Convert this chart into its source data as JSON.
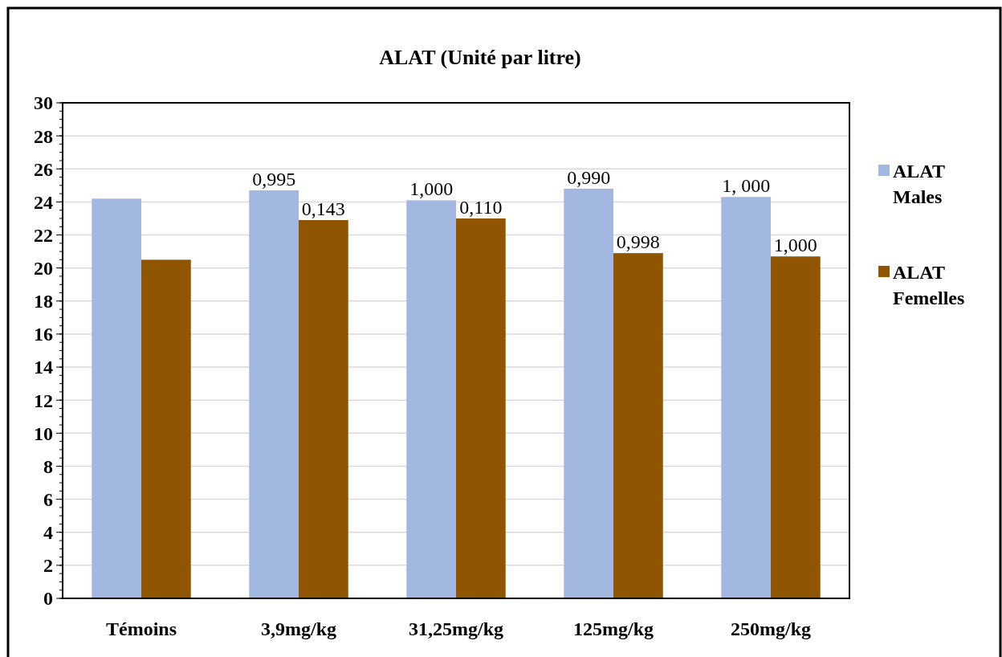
{
  "chart_data": {
    "type": "bar",
    "title": "ALAT (Unité par litre)",
    "categories": [
      "Témoins",
      "3,9mg/kg",
      "31,25mg/kg",
      "125mg/kg",
      "250mg/kg"
    ],
    "series": [
      {
        "name": "ALAT Males",
        "color": "#a3b8e0",
        "values": [
          24.2,
          24.7,
          24.1,
          24.8,
          24.3
        ]
      },
      {
        "name": "ALAT Femelles",
        "color": "#8f5500",
        "values": [
          20.5,
          22.9,
          23.0,
          20.9,
          20.7
        ]
      }
    ],
    "annotations": [
      {
        "text": "0,995",
        "x": "3,9mg/kg",
        "y": 24.7
      },
      {
        "text": "1,000",
        "x": "31,25mg/kg",
        "y": 24.1
      },
      {
        "text": "0,990",
        "x": "125mg/kg",
        "y": 24.8
      },
      {
        "text": "1, 000",
        "x": "250mg/kg",
        "y": 24.3
      },
      {
        "text": "0,143",
        "x": "3,9mg/kg",
        "y": 22.9
      },
      {
        "text": "0,110",
        "x": "31,25mg/kg",
        "y": 23.0
      },
      {
        "text": "0,998",
        "x": "125mg/kg",
        "y": 20.9
      },
      {
        "text": "1,000",
        "x": "250mg/kg",
        "y": 20.7
      }
    ],
    "ylim": [
      0,
      30
    ],
    "yticks": [
      0,
      2,
      4,
      6,
      8,
      10,
      12,
      14,
      16,
      18,
      20,
      22,
      24,
      26,
      28,
      30
    ],
    "grid": "y",
    "legend": "right"
  }
}
